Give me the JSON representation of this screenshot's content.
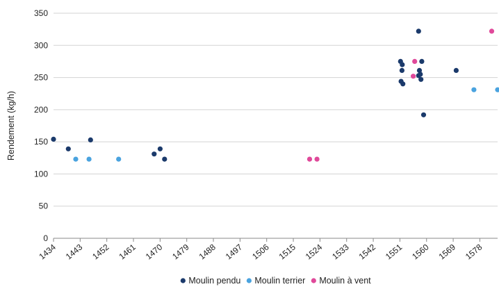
{
  "chart_data": {
    "type": "scatter",
    "ylabel": "Rendement (kg/h)",
    "xlabel": "",
    "xlim": [
      1434,
      1584
    ],
    "ylim": [
      0,
      350
    ],
    "x_ticks": [
      "1434",
      "1443",
      "1452",
      "1461",
      "1470",
      "1479",
      "1488",
      "1497",
      "1506",
      "1515",
      "1524",
      "1533",
      "1542",
      "1551",
      "1560",
      "1569",
      "1578"
    ],
    "y_ticks": [
      "0",
      "50",
      "100",
      "150",
      "200",
      "250",
      "300",
      "350"
    ],
    "grid": true,
    "legend_position": "bottom",
    "series": [
      {
        "name": "Moulin pendu",
        "color": "#1b3a6b",
        "points": [
          [
            1434,
            154
          ],
          [
            1439,
            139
          ],
          [
            1446.5,
            153
          ],
          [
            1468,
            131
          ],
          [
            1470,
            139
          ],
          [
            1471.5,
            123
          ],
          [
            1551.2,
            275
          ],
          [
            1551.4,
            244
          ],
          [
            1551.7,
            261
          ],
          [
            1551.8,
            270
          ],
          [
            1552,
            240
          ],
          [
            1557.3,
            322
          ],
          [
            1557.3,
            253
          ],
          [
            1557.6,
            261
          ],
          [
            1557.9,
            255
          ],
          [
            1558.1,
            247
          ],
          [
            1558.4,
            275
          ],
          [
            1559,
            192
          ],
          [
            1570,
            261
          ]
        ]
      },
      {
        "name": "Moulin terrier",
        "color": "#4aa3df",
        "points": [
          [
            1441.5,
            123
          ],
          [
            1446,
            123
          ],
          [
            1456,
            123
          ],
          [
            1576,
            231
          ],
          [
            1584,
            231
          ]
        ]
      },
      {
        "name": "Moulin à vent",
        "color": "#e0499a",
        "points": [
          [
            1520.5,
            123
          ],
          [
            1523,
            123
          ],
          [
            1555.5,
            252
          ],
          [
            1556,
            275
          ],
          [
            1582,
            322
          ]
        ]
      }
    ]
  }
}
